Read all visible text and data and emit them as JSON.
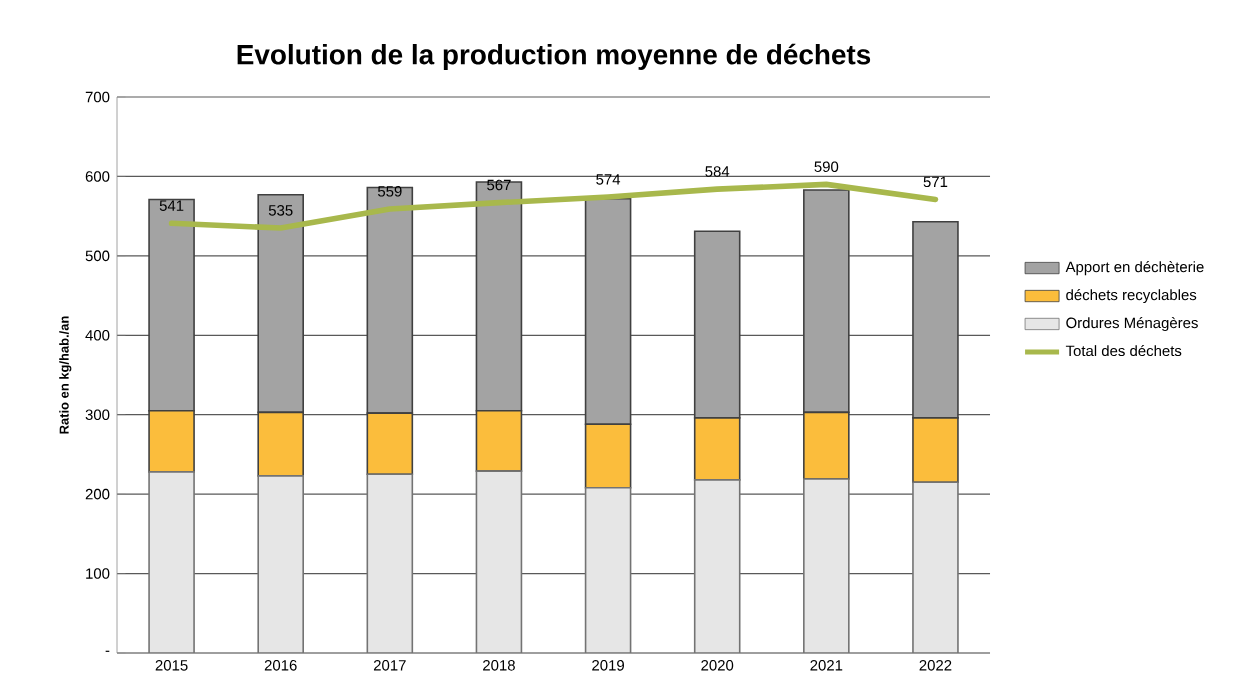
{
  "chart_data": {
    "type": "bar",
    "stacked": true,
    "title": "Evolution de la production moyenne de déchets",
    "ylabel": "Ratio en kg/hab./an",
    "categories": [
      "2015",
      "2016",
      "2017",
      "2018",
      "2019",
      "2020",
      "2021",
      "2022"
    ],
    "series": [
      {
        "name": "Ordures Ménagères",
        "color": "#e6e6e6",
        "values": [
          228,
          223,
          225,
          229,
          208,
          218,
          219,
          215
        ]
      },
      {
        "name": "déchets recyclables",
        "color": "#fbbd3c",
        "values": [
          77,
          80,
          77,
          76,
          80,
          78,
          84,
          81
        ]
      },
      {
        "name": "Apport en déchèterie",
        "color": "#a3a3a3",
        "values": [
          266,
          274,
          284,
          288,
          284,
          235,
          280,
          247
        ]
      },
      {
        "name": "Total des déchets",
        "type": "line",
        "color": "#a8b84c",
        "values": [
          541,
          535,
          559,
          567,
          574,
          584,
          590,
          571
        ],
        "value_labels": [
          "541",
          "535",
          "559",
          "567",
          "574",
          "584",
          "590",
          "571"
        ]
      }
    ],
    "ylim": [
      0,
      700
    ],
    "yticks": [
      {
        "value": 0,
        "label": "-"
      },
      100,
      200,
      300,
      400,
      500,
      600,
      700
    ],
    "grid": "y",
    "legend": "right",
    "marker": "none"
  }
}
